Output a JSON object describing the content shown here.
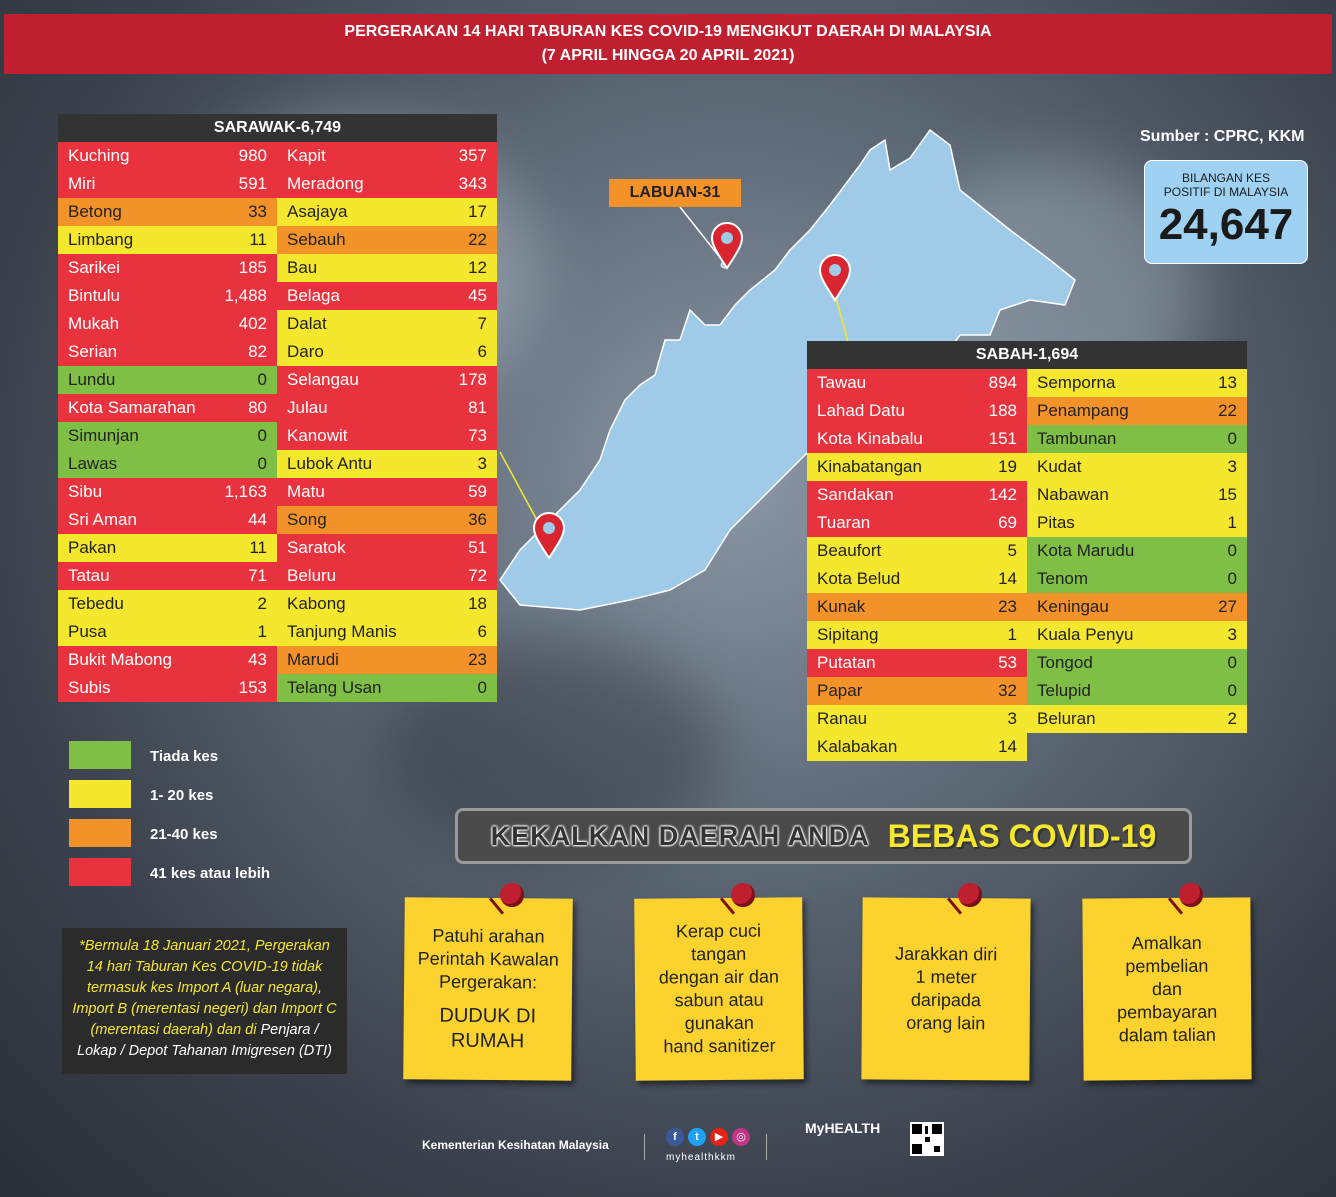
{
  "header": {
    "line1": "PERGERAKAN 14 HARI TABURAN KES COVID-19 MENGIKUT DAERAH DI MALAYSIA",
    "line2": "(7 APRIL HINGGA 20 APRIL 2021)"
  },
  "source": "Sumber : CPRC, KKM",
  "total": {
    "label1": "BILANGAN KES",
    "label2": "POSITIF DI MALAYSIA",
    "value": "24,647"
  },
  "labuan": "LABUAN-31",
  "sarawak": {
    "title": "SARAWAK-6,749",
    "left": [
      {
        "name": "Kuching",
        "value": "980",
        "level": "r"
      },
      {
        "name": "Miri",
        "value": "591",
        "level": "r"
      },
      {
        "name": "Betong",
        "value": "33",
        "level": "o"
      },
      {
        "name": "Limbang",
        "value": "11",
        "level": "y"
      },
      {
        "name": "Sarikei",
        "value": "185",
        "level": "r"
      },
      {
        "name": "Bintulu",
        "value": "1,488",
        "level": "r"
      },
      {
        "name": "Mukah",
        "value": "402",
        "level": "r"
      },
      {
        "name": "Serian",
        "value": "82",
        "level": "r"
      },
      {
        "name": "Lundu",
        "value": "0",
        "level": "g"
      },
      {
        "name": "Kota Samarahan",
        "value": "80",
        "level": "r"
      },
      {
        "name": "Simunjan",
        "value": "0",
        "level": "g"
      },
      {
        "name": "Lawas",
        "value": "0",
        "level": "g"
      },
      {
        "name": "Sibu",
        "value": "1,163",
        "level": "r"
      },
      {
        "name": "Sri Aman",
        "value": "44",
        "level": "r"
      },
      {
        "name": "Pakan",
        "value": "11",
        "level": "y"
      },
      {
        "name": "Tatau",
        "value": "71",
        "level": "r"
      },
      {
        "name": "Tebedu",
        "value": "2",
        "level": "y"
      },
      {
        "name": "Pusa",
        "value": "1",
        "level": "y"
      },
      {
        "name": "Bukit Mabong",
        "value": "43",
        "level": "r"
      },
      {
        "name": "Subis",
        "value": "153",
        "level": "r"
      }
    ],
    "right": [
      {
        "name": "Kapit",
        "value": "357",
        "level": "r"
      },
      {
        "name": "Meradong",
        "value": "343",
        "level": "r"
      },
      {
        "name": "Asajaya",
        "value": "17",
        "level": "y"
      },
      {
        "name": "Sebauh",
        "value": "22",
        "level": "o"
      },
      {
        "name": "Bau",
        "value": "12",
        "level": "y"
      },
      {
        "name": "Belaga",
        "value": "45",
        "level": "r"
      },
      {
        "name": "Dalat",
        "value": "7",
        "level": "y"
      },
      {
        "name": "Daro",
        "value": "6",
        "level": "y"
      },
      {
        "name": "Selangau",
        "value": "178",
        "level": "r"
      },
      {
        "name": "Julau",
        "value": "81",
        "level": "r"
      },
      {
        "name": "Kanowit",
        "value": "73",
        "level": "r"
      },
      {
        "name": "Lubok Antu",
        "value": "3",
        "level": "y"
      },
      {
        "name": "Matu",
        "value": "59",
        "level": "r"
      },
      {
        "name": "Song",
        "value": "36",
        "level": "o"
      },
      {
        "name": "Saratok",
        "value": "51",
        "level": "r"
      },
      {
        "name": "Beluru",
        "value": "72",
        "level": "r"
      },
      {
        "name": "Kabong",
        "value": "18",
        "level": "y"
      },
      {
        "name": "Tanjung Manis",
        "value": "6",
        "level": "y"
      },
      {
        "name": "Marudi",
        "value": "23",
        "level": "o"
      },
      {
        "name": "Telang Usan",
        "value": "0",
        "level": "g"
      }
    ]
  },
  "sabah": {
    "title": "SABAH-1,694",
    "left": [
      {
        "name": "Tawau",
        "value": "894",
        "level": "r"
      },
      {
        "name": "Lahad Datu",
        "value": "188",
        "level": "r"
      },
      {
        "name": "Kota Kinabalu",
        "value": "151",
        "level": "r"
      },
      {
        "name": "Kinabatangan",
        "value": "19",
        "level": "y"
      },
      {
        "name": "Sandakan",
        "value": "142",
        "level": "r"
      },
      {
        "name": "Tuaran",
        "value": "69",
        "level": "r"
      },
      {
        "name": "Beaufort",
        "value": "5",
        "level": "y"
      },
      {
        "name": "Kota Belud",
        "value": "14",
        "level": "y"
      },
      {
        "name": "Kunak",
        "value": "23",
        "level": "o"
      },
      {
        "name": "Sipitang",
        "value": "1",
        "level": "y"
      },
      {
        "name": "Putatan",
        "value": "53",
        "level": "r"
      },
      {
        "name": "Papar",
        "value": "32",
        "level": "o"
      },
      {
        "name": "Ranau",
        "value": "3",
        "level": "y"
      },
      {
        "name": "Kalabakan",
        "value": "14",
        "level": "y"
      }
    ],
    "right": [
      {
        "name": "Semporna",
        "value": "13",
        "level": "y"
      },
      {
        "name": "Penampang",
        "value": "22",
        "level": "o"
      },
      {
        "name": "Tambunan",
        "value": "0",
        "level": "g"
      },
      {
        "name": "Kudat",
        "value": "3",
        "level": "y"
      },
      {
        "name": "Nabawan",
        "value": "15",
        "level": "y"
      },
      {
        "name": "Pitas",
        "value": "1",
        "level": "y"
      },
      {
        "name": "Kota Marudu",
        "value": "0",
        "level": "g"
      },
      {
        "name": "Tenom",
        "value": "0",
        "level": "g"
      },
      {
        "name": "Keningau",
        "value": "27",
        "level": "o"
      },
      {
        "name": "Kuala Penyu",
        "value": "3",
        "level": "y"
      },
      {
        "name": "Tongod",
        "value": "0",
        "level": "g"
      },
      {
        "name": "Telupid",
        "value": "0",
        "level": "g"
      },
      {
        "name": "Beluran",
        "value": "2",
        "level": "y"
      }
    ]
  },
  "legend": [
    {
      "label": "Tiada kes",
      "color": "#7fbf45"
    },
    {
      "label": "1- 20 kes",
      "color": "#f5e72e"
    },
    {
      "label": "21-40 kes",
      "color": "#f4922a"
    },
    {
      "label": "41 kes atau lebih",
      "color": "#e8333e"
    }
  ],
  "note": {
    "part1": "*Bermula 18 Januari 2021, Pergerakan 14 hari Taburan Kes COVID-19 tidak termasuk kes Import A (luar negara), Import B (merentasi negeri) dan Import C (merentasi daerah) dan di",
    "part2": "Penjara / Lokap / Depot Tahanan Imigresen (DTI)"
  },
  "banner": {
    "part1": "KEKALKAN DAERAH ANDA",
    "part2": "BEBAS COVID-19"
  },
  "cards": [
    {
      "lines": [
        "Patuhi arahan",
        "Perintah Kawalan",
        "Pergerakan:"
      ],
      "emph": [
        "DUDUK DI",
        "RUMAH"
      ]
    },
    {
      "lines": [
        "Kerap cuci",
        "tangan",
        "dengan air dan",
        "sabun atau",
        "gunakan",
        "hand sanitizer"
      ],
      "emph": []
    },
    {
      "lines": [
        "Jarakkan diri",
        "1 meter",
        "daripada",
        "orang lain"
      ],
      "emph": []
    },
    {
      "lines": [
        "Amalkan",
        "pembelian",
        "dan",
        "pembayaran",
        "dalam talian"
      ],
      "emph": []
    }
  ],
  "footer": {
    "ministry": "Kementerian Kesihatan Malaysia",
    "handle": "myhealthkkm",
    "brand": "MyHEALTH"
  }
}
